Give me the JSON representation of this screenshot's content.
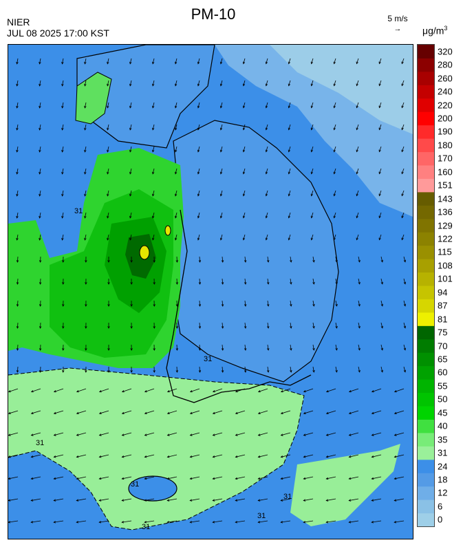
{
  "header": {
    "title": "PM-10",
    "agency": "NIER",
    "timestamp": "JUL 08 2025 17:00 KST",
    "wind_reference": "5 m/s",
    "wind_reference_arrow": "→",
    "unit": "μg/m",
    "unit_sup": "3"
  },
  "contour_label": "31",
  "legend": {
    "ticks": [
      "320",
      "280",
      "260",
      "240",
      "220",
      "200",
      "190",
      "180",
      "170",
      "160",
      "151",
      "143",
      "136",
      "129",
      "122",
      "115",
      "108",
      "101",
      "94",
      "87",
      "81",
      "75",
      "70",
      "65",
      "60",
      "55",
      "50",
      "45",
      "40",
      "35",
      "31",
      "24",
      "18",
      "12",
      "6",
      "0"
    ],
    "colors": [
      "#6b0000",
      "#8b0000",
      "#a00000",
      "#b80000",
      "#d00000",
      "#e80000",
      "#ff0000",
      "#ff4040",
      "#ff6060",
      "#ff8080",
      "#ff9f9f",
      "#665c00",
      "#736900",
      "#807500",
      "#8c8200",
      "#998e00",
      "#a69b00",
      "#b3a800",
      "#c0b400",
      "#cdc100",
      "#dadc00",
      "#e8e800",
      "#006b00",
      "#007800",
      "#008a00",
      "#009a00",
      "#00ad00",
      "#00c000",
      "#00d400",
      "#00e800",
      "#7af07a",
      "#a0f0a0",
      "#3c8fe8",
      "#5aa0e8",
      "#7ab4ea",
      "#8ec8e8",
      "#a8d8ec"
    ],
    "bands": [
      {
        "from": "0",
        "to": "6",
        "color": "#9ecfe8"
      },
      {
        "from": "6",
        "to": "12",
        "color": "#8ac1e6"
      },
      {
        "from": "12",
        "to": "18",
        "color": "#6faee8"
      },
      {
        "from": "18",
        "to": "24",
        "color": "#549be6"
      },
      {
        "from": "24",
        "to": "31",
        "color": "#3c8fe8"
      },
      {
        "from": "31",
        "to": "35",
        "color": "#9af09a"
      },
      {
        "from": "35",
        "to": "40",
        "color": "#78ec78"
      },
      {
        "from": "40",
        "to": "45",
        "color": "#40e040"
      },
      {
        "from": "45",
        "to": "50",
        "color": "#00d400"
      },
      {
        "from": "50",
        "to": "55",
        "color": "#00c400"
      },
      {
        "from": "55",
        "to": "60",
        "color": "#00b400"
      },
      {
        "from": "60",
        "to": "65",
        "color": "#00a200"
      },
      {
        "from": "65",
        "to": "70",
        "color": "#009000"
      },
      {
        "from": "70",
        "to": "75",
        "color": "#007c00"
      },
      {
        "from": "75",
        "to": "81",
        "color": "#006600"
      },
      {
        "from": "81",
        "to": "87",
        "color": "#eef000"
      },
      {
        "from": "87",
        "to": "94",
        "color": "#d6d600"
      },
      {
        "from": "94",
        "to": "101",
        "color": "#c6c400"
      },
      {
        "from": "101",
        "to": "108",
        "color": "#b7b200"
      },
      {
        "from": "108",
        "to": "115",
        "color": "#a8a000"
      },
      {
        "from": "115",
        "to": "122",
        "color": "#9a9000"
      },
      {
        "from": "122",
        "to": "129",
        "color": "#8c8200"
      },
      {
        "from": "129",
        "to": "136",
        "color": "#807400"
      },
      {
        "from": "136",
        "to": "143",
        "color": "#746800"
      },
      {
        "from": "143",
        "to": "151",
        "color": "#665c00"
      },
      {
        "from": "151",
        "to": "160",
        "color": "#ff9a9a"
      },
      {
        "from": "160",
        "to": "170",
        "color": "#ff8080"
      },
      {
        "from": "170",
        "to": "180",
        "color": "#ff6666"
      },
      {
        "from": "180",
        "to": "190",
        "color": "#ff4a4a"
      },
      {
        "from": "190",
        "to": "200",
        "color": "#ff2a2a"
      },
      {
        "from": "200",
        "to": "220",
        "color": "#ff0000"
      },
      {
        "from": "220",
        "to": "240",
        "color": "#e00000"
      },
      {
        "from": "240",
        "to": "260",
        "color": "#c40000"
      },
      {
        "from": "260",
        "to": "280",
        "color": "#a80000"
      },
      {
        "from": "280",
        "to": "320",
        "color": "#8c0000"
      },
      {
        "from": "320",
        "to": "",
        "color": "#660000"
      }
    ]
  }
}
